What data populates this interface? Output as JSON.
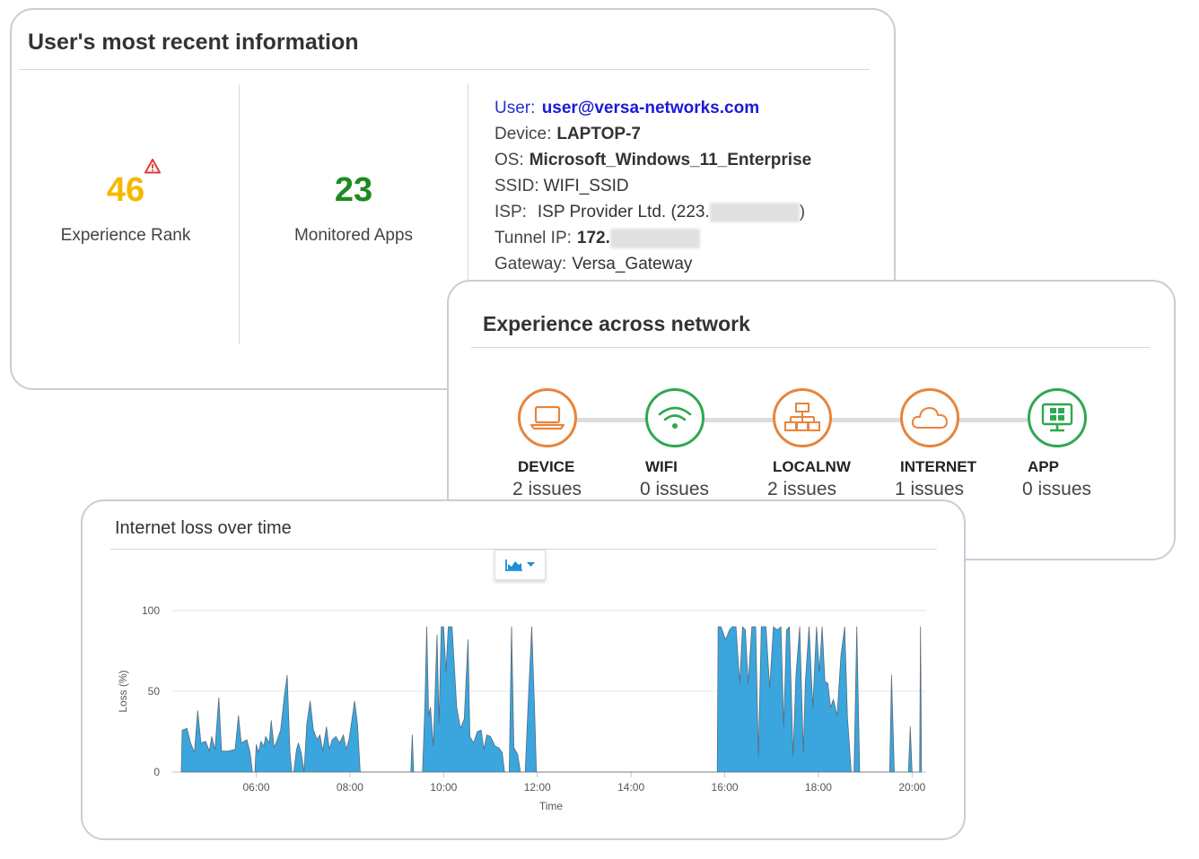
{
  "user_card": {
    "title": "User's most recent information",
    "experience_rank": {
      "value": "46",
      "label": "Experience Rank",
      "color": "#f5b800",
      "warning": true
    },
    "monitored_apps": {
      "value": "23",
      "label": "Monitored Apps",
      "color": "#1e8a1e"
    },
    "info": {
      "user_label": "User:",
      "user_value": "user@versa-networks.com",
      "device_label": "Device:",
      "device_value": "LAPTOP-7",
      "os_label": "OS:",
      "os_value": "Microsoft_Windows_11_Enterprise",
      "ssid_label": "SSID:",
      "ssid_value": "WIFI_SSID",
      "isp_label": "ISP:",
      "isp_value": "ISP Provider Ltd. (223.",
      "isp_close": ")",
      "tunnel_label": "Tunnel IP:",
      "tunnel_value": "172.",
      "gateway_label": "Gateway:",
      "gateway_value": "Versa_Gateway"
    }
  },
  "network_card": {
    "title": "Experience across network",
    "nodes": [
      {
        "label": "DEVICE",
        "issues": "2 issues",
        "icon": "laptop-icon",
        "color": "#e8843c"
      },
      {
        "label": "WIFI",
        "issues": "0 issues",
        "icon": "wifi-icon",
        "color": "#2fa84f"
      },
      {
        "label": "LOCALNW",
        "issues": "2 issues",
        "icon": "network-icon",
        "color": "#e8843c"
      },
      {
        "label": "INTERNET",
        "issues": "1 issues",
        "icon": "cloud-icon",
        "color": "#e8843c"
      },
      {
        "label": "APP",
        "issues": "0 issues",
        "icon": "app-icon",
        "color": "#2fa84f"
      }
    ]
  },
  "chart_card": {
    "title": "Internet loss over time",
    "chart_type_button_icon": "area-chart-icon"
  },
  "chart_data": {
    "type": "area",
    "title": "Internet loss over time",
    "xlabel": "Time",
    "ylabel": "Loss (%)",
    "ylim": [
      0,
      100
    ],
    "yticks": [
      0,
      50,
      100
    ],
    "xlim": [
      4.4,
      20.3
    ],
    "xticks": [
      6,
      8,
      10,
      12,
      14,
      16,
      18,
      20
    ],
    "xtick_labels": [
      "06:00",
      "08:00",
      "10:00",
      "12:00",
      "14:00",
      "16:00",
      "18:00",
      "20:00"
    ],
    "color": "#3aa6dd",
    "series": [
      {
        "name": "Loss",
        "points": [
          [
            4.4,
            0
          ],
          [
            4.42,
            26
          ],
          [
            4.52,
            27
          ],
          [
            4.6,
            18
          ],
          [
            4.68,
            12
          ],
          [
            4.75,
            38
          ],
          [
            4.82,
            18
          ],
          [
            4.92,
            19
          ],
          [
            5.0,
            13
          ],
          [
            5.05,
            22
          ],
          [
            5.12,
            14
          ],
          [
            5.2,
            46
          ],
          [
            5.26,
            13
          ],
          [
            5.4,
            13
          ],
          [
            5.55,
            14
          ],
          [
            5.62,
            35
          ],
          [
            5.68,
            18
          ],
          [
            5.8,
            20
          ],
          [
            5.87,
            12
          ],
          [
            5.92,
            0
          ],
          [
            5.97,
            0
          ],
          [
            6.0,
            17
          ],
          [
            6.05,
            12
          ],
          [
            6.1,
            19
          ],
          [
            6.16,
            16
          ],
          [
            6.2,
            22
          ],
          [
            6.28,
            18
          ],
          [
            6.32,
            32
          ],
          [
            6.38,
            15
          ],
          [
            6.45,
            20
          ],
          [
            6.52,
            26
          ],
          [
            6.6,
            47
          ],
          [
            6.66,
            60
          ],
          [
            6.72,
            12
          ],
          [
            6.76,
            0
          ],
          [
            6.8,
            0
          ],
          [
            6.86,
            14
          ],
          [
            6.9,
            18
          ],
          [
            6.96,
            12
          ],
          [
            7.02,
            0
          ],
          [
            7.08,
            30
          ],
          [
            7.15,
            44
          ],
          [
            7.22,
            26
          ],
          [
            7.3,
            20
          ],
          [
            7.36,
            23
          ],
          [
            7.42,
            13
          ],
          [
            7.5,
            28
          ],
          [
            7.56,
            14
          ],
          [
            7.62,
            20
          ],
          [
            7.7,
            22
          ],
          [
            7.78,
            18
          ],
          [
            7.86,
            23
          ],
          [
            7.92,
            14
          ],
          [
            7.98,
            20
          ],
          [
            8.04,
            32
          ],
          [
            8.1,
            44
          ],
          [
            8.16,
            30
          ],
          [
            8.22,
            0
          ],
          [
            9.3,
            0
          ],
          [
            9.33,
            23
          ],
          [
            9.36,
            0
          ],
          [
            9.55,
            0
          ],
          [
            9.6,
            40
          ],
          [
            9.64,
            90
          ],
          [
            9.68,
            35
          ],
          [
            9.72,
            40
          ],
          [
            9.78,
            16
          ],
          [
            9.86,
            85
          ],
          [
            9.9,
            30
          ],
          [
            9.95,
            90
          ],
          [
            10.0,
            90
          ],
          [
            10.05,
            62
          ],
          [
            10.1,
            90
          ],
          [
            10.18,
            90
          ],
          [
            10.22,
            70
          ],
          [
            10.28,
            40
          ],
          [
            10.36,
            27
          ],
          [
            10.44,
            33
          ],
          [
            10.52,
            82
          ],
          [
            10.56,
            22
          ],
          [
            10.64,
            18
          ],
          [
            10.72,
            25
          ],
          [
            10.8,
            26
          ],
          [
            10.86,
            14
          ],
          [
            10.92,
            23
          ],
          [
            11.0,
            22
          ],
          [
            11.1,
            16
          ],
          [
            11.18,
            15
          ],
          [
            11.25,
            12
          ],
          [
            11.3,
            0
          ],
          [
            11.4,
            0
          ],
          [
            11.45,
            90
          ],
          [
            11.5,
            15
          ],
          [
            11.58,
            11
          ],
          [
            11.64,
            0
          ],
          [
            11.74,
            0
          ],
          [
            11.8,
            40
          ],
          [
            11.88,
            90
          ],
          [
            11.94,
            40
          ],
          [
            11.98,
            0
          ],
          [
            15.84,
            0
          ],
          [
            15.86,
            90
          ],
          [
            15.92,
            90
          ],
          [
            16.02,
            82
          ],
          [
            16.1,
            88
          ],
          [
            16.16,
            90
          ],
          [
            16.24,
            90
          ],
          [
            16.32,
            55
          ],
          [
            16.38,
            90
          ],
          [
            16.44,
            88
          ],
          [
            16.5,
            55
          ],
          [
            16.58,
            90
          ],
          [
            16.66,
            90
          ],
          [
            16.72,
            10
          ],
          [
            16.78,
            90
          ],
          [
            16.88,
            90
          ],
          [
            16.96,
            52
          ],
          [
            17.04,
            90
          ],
          [
            17.12,
            88
          ],
          [
            17.2,
            90
          ],
          [
            17.26,
            28
          ],
          [
            17.32,
            88
          ],
          [
            17.38,
            90
          ],
          [
            17.46,
            10
          ],
          [
            17.52,
            60
          ],
          [
            17.6,
            90
          ],
          [
            17.68,
            12
          ],
          [
            17.72,
            55
          ],
          [
            17.8,
            90
          ],
          [
            17.88,
            40
          ],
          [
            17.96,
            90
          ],
          [
            18.02,
            62
          ],
          [
            18.08,
            90
          ],
          [
            18.14,
            56
          ],
          [
            18.2,
            55
          ],
          [
            18.26,
            40
          ],
          [
            18.32,
            45
          ],
          [
            18.4,
            35
          ],
          [
            18.48,
            72
          ],
          [
            18.56,
            90
          ],
          [
            18.62,
            34
          ],
          [
            18.7,
            0
          ],
          [
            18.76,
            0
          ],
          [
            18.82,
            90
          ],
          [
            18.88,
            0
          ],
          [
            19.52,
            0
          ],
          [
            19.56,
            60
          ],
          [
            19.62,
            0
          ],
          [
            19.92,
            0
          ],
          [
            19.96,
            28
          ],
          [
            20.0,
            0
          ],
          [
            20.16,
            0
          ],
          [
            20.18,
            90
          ],
          [
            20.2,
            0
          ]
        ]
      }
    ]
  }
}
